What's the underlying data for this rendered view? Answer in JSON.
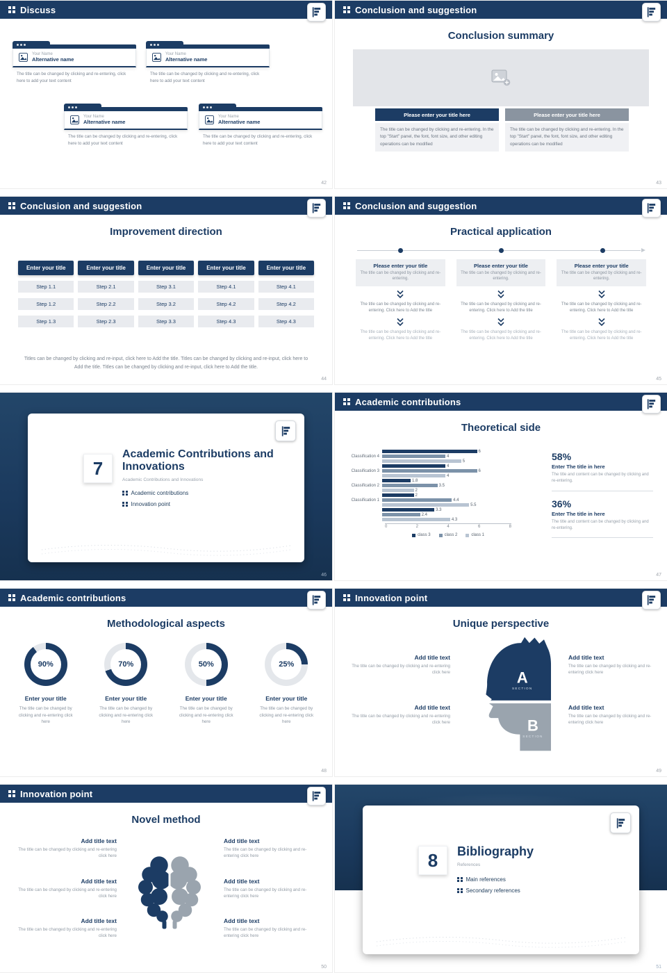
{
  "colors": {
    "navy": "#1c3c64",
    "gray_button": "#8a94a0",
    "bar_dark": "#1c3c64",
    "bar_mid": "#7c92a9",
    "bar_light": "#b8c4d2"
  },
  "s42": {
    "header": "Discuss",
    "page": "42",
    "cards": [
      {
        "name": "Your Name",
        "alt": "Alternative name",
        "body": "The title can be changed by clicking and re-entering, click here to add your text content"
      },
      {
        "name": "Your Name",
        "alt": "Alternative name",
        "body": "The title can be changed by clicking and re-entering, click here to add your text content"
      },
      {
        "name": "Your Name",
        "alt": "Alternative name",
        "body": "The title can be changed by clicking and re-entering, click here to add your text content"
      },
      {
        "name": "Your Name",
        "alt": "Alternative name",
        "body": "The title can be changed by clicking and re-entering, click here to add your text content"
      }
    ]
  },
  "s43": {
    "header": "Conclusion and suggestion",
    "title": "Conclusion summary",
    "page": "43",
    "cols": [
      {
        "button": "Please enter your title here",
        "body": "The title can be changed by clicking and re-entering. In the top \"Start\" panel, the font, font size, and other editing operations can be modified"
      },
      {
        "button": "Please enter your title here",
        "body": "The title can be changed by clicking and re-entering. In the top \"Start\" panel, the font, font size, and other editing operations can be modified"
      }
    ]
  },
  "s44": {
    "header": "Conclusion and suggestion",
    "title": "Improvement direction",
    "page": "44",
    "columns": [
      {
        "button": "Enter your title",
        "steps": [
          "Step 1.1",
          "Step 1.2",
          "Step 1.3"
        ]
      },
      {
        "button": "Enter your title",
        "steps": [
          "Step 2.1",
          "Step 2.2",
          "Step 2.3"
        ]
      },
      {
        "button": "Enter your title",
        "steps": [
          "Step 3.1",
          "Step 3.2",
          "Step 3.3"
        ]
      },
      {
        "button": "Enter your title",
        "steps": [
          "Step 4.1",
          "Step 4.2",
          "Step 4.3"
        ]
      },
      {
        "button": "Enter your title",
        "steps": [
          "Step 4.1",
          "Step 4.2",
          "Step 4.3"
        ]
      }
    ],
    "footer": "Titles can be changed by clicking and re-input, click here to Add the title. Titles can be changed by clicking and re-input, click here to Add the title. Titles can be changed by clicking and re-input, click here to Add the title."
  },
  "s45": {
    "header": "Conclusion and suggestion",
    "title": "Practical application",
    "page": "45",
    "columns": [
      {
        "title": "Please enter your title",
        "sub": "The title can be changed by clicking and re-entering.",
        "step1": "The title can be changed by clicking and re-entering. Click here to Add the title",
        "step2": "The title can be changed by clicking and re-entering. Click here to Add the title"
      },
      {
        "title": "Please enter your title",
        "sub": "The title can be changed by clicking and re-entering.",
        "step1": "The title can be changed by clicking and re-entering. Click here to Add the title",
        "step2": "The title can be changed by clicking and re-entering. Click here to Add the title"
      },
      {
        "title": "Please enter your title",
        "sub": "The title can be changed by clicking and re-entering.",
        "step1": "The title can be changed by clicking and re-entering. Click here to Add the title",
        "step2": "The title can be changed by clicking and re-entering. Click here to Add the title"
      }
    ]
  },
  "s46": {
    "page": "46",
    "number": "7",
    "title": "Academic Contributions and Innovations",
    "subtitle": "Academic Contributions and Innovations",
    "bullets": [
      "Academic contributions",
      "Innovation point"
    ]
  },
  "s47": {
    "header": "Academic contributions",
    "title": "Theoretical side",
    "page": "47",
    "stats": [
      {
        "pct": "58%",
        "title": "Enter The title in here",
        "body": "The title and content can be changed by clicking and re-entering."
      },
      {
        "pct": "36%",
        "title": "Enter The title in here",
        "body": "The title and content can be changed by clicking and re-entering."
      }
    ]
  },
  "chart_data": {
    "type": "bar",
    "orientation": "horizontal",
    "title": "Theoretical side",
    "xlabel": "",
    "ylabel": "",
    "xlim": [
      0,
      8
    ],
    "x_ticks": [
      0,
      2,
      4,
      6,
      8
    ],
    "grid": false,
    "legend": [
      "class 3",
      "class 2",
      "class 1"
    ],
    "legend_position": "bottom",
    "groups": [
      {
        "label": "Classification 4",
        "values": [
          6,
          4,
          5
        ]
      },
      {
        "label": "Classification 3",
        "values": [
          4,
          6,
          4
        ]
      },
      {
        "label": "Classification 2",
        "values": [
          1.8,
          3.5,
          2
        ]
      },
      {
        "label": "Classification 1",
        "values": [
          2,
          4.4,
          5.5
        ]
      },
      {
        "label": "",
        "values": [
          3.3,
          2.4,
          4.3
        ]
      }
    ]
  },
  "s48": {
    "header": "Academic contributions",
    "title": "Methodological aspects",
    "page": "48",
    "donuts": [
      {
        "percent": 90,
        "label": "90%",
        "title": "Enter your title",
        "body": "The title can be changed by clicking and re-entering click here"
      },
      {
        "percent": 70,
        "label": "70%",
        "title": "Enter your title",
        "body": "The title can be changed by clicking and re-entering click here"
      },
      {
        "percent": 50,
        "label": "50%",
        "title": "Enter your title",
        "body": "The title can be changed by clicking and re-entering click here"
      },
      {
        "percent": 25,
        "label": "25%",
        "title": "Enter your title",
        "body": "The title can be changed by clicking and re-entering click here"
      }
    ]
  },
  "s49": {
    "header": "Innovation point",
    "title": "Unique perspective",
    "page": "49",
    "section_a": "A",
    "section_b": "B",
    "section_label": "SECTION",
    "left_items": [
      {
        "title": "Add title text",
        "body": "The title can be changed by clicking and re-entering click here"
      },
      {
        "title": "Add title text",
        "body": "The title can be changed by clicking and re-entering click here"
      }
    ],
    "right_items": [
      {
        "title": "Add title text",
        "body": "The title can be changed by clicking and re-entering click here"
      },
      {
        "title": "Add title text",
        "body": "The title can be changed by clicking and re-entering click here"
      }
    ]
  },
  "s50": {
    "header": "Innovation point",
    "title": "Novel method",
    "page": "50",
    "left_items": [
      {
        "title": "Add title text",
        "body": "The title can be changed by clicking and re-entering click here"
      },
      {
        "title": "Add title text",
        "body": "The title can be changed by clicking and re-entering click here"
      },
      {
        "title": "Add title text",
        "body": "The title can be changed by clicking and re-entering click here"
      }
    ],
    "right_items": [
      {
        "title": "Add title text",
        "body": "The title can be changed by clicking and re-entering click here"
      },
      {
        "title": "Add title text",
        "body": "The title can be changed by clicking and re-entering click here"
      },
      {
        "title": "Add title text",
        "body": "The title can be changed by clicking and re-entering click here"
      }
    ]
  },
  "s51": {
    "page": "51",
    "number": "8",
    "title": "Bibliography",
    "subtitle": "References",
    "bullets": [
      "Main references",
      "Secondary references"
    ]
  }
}
